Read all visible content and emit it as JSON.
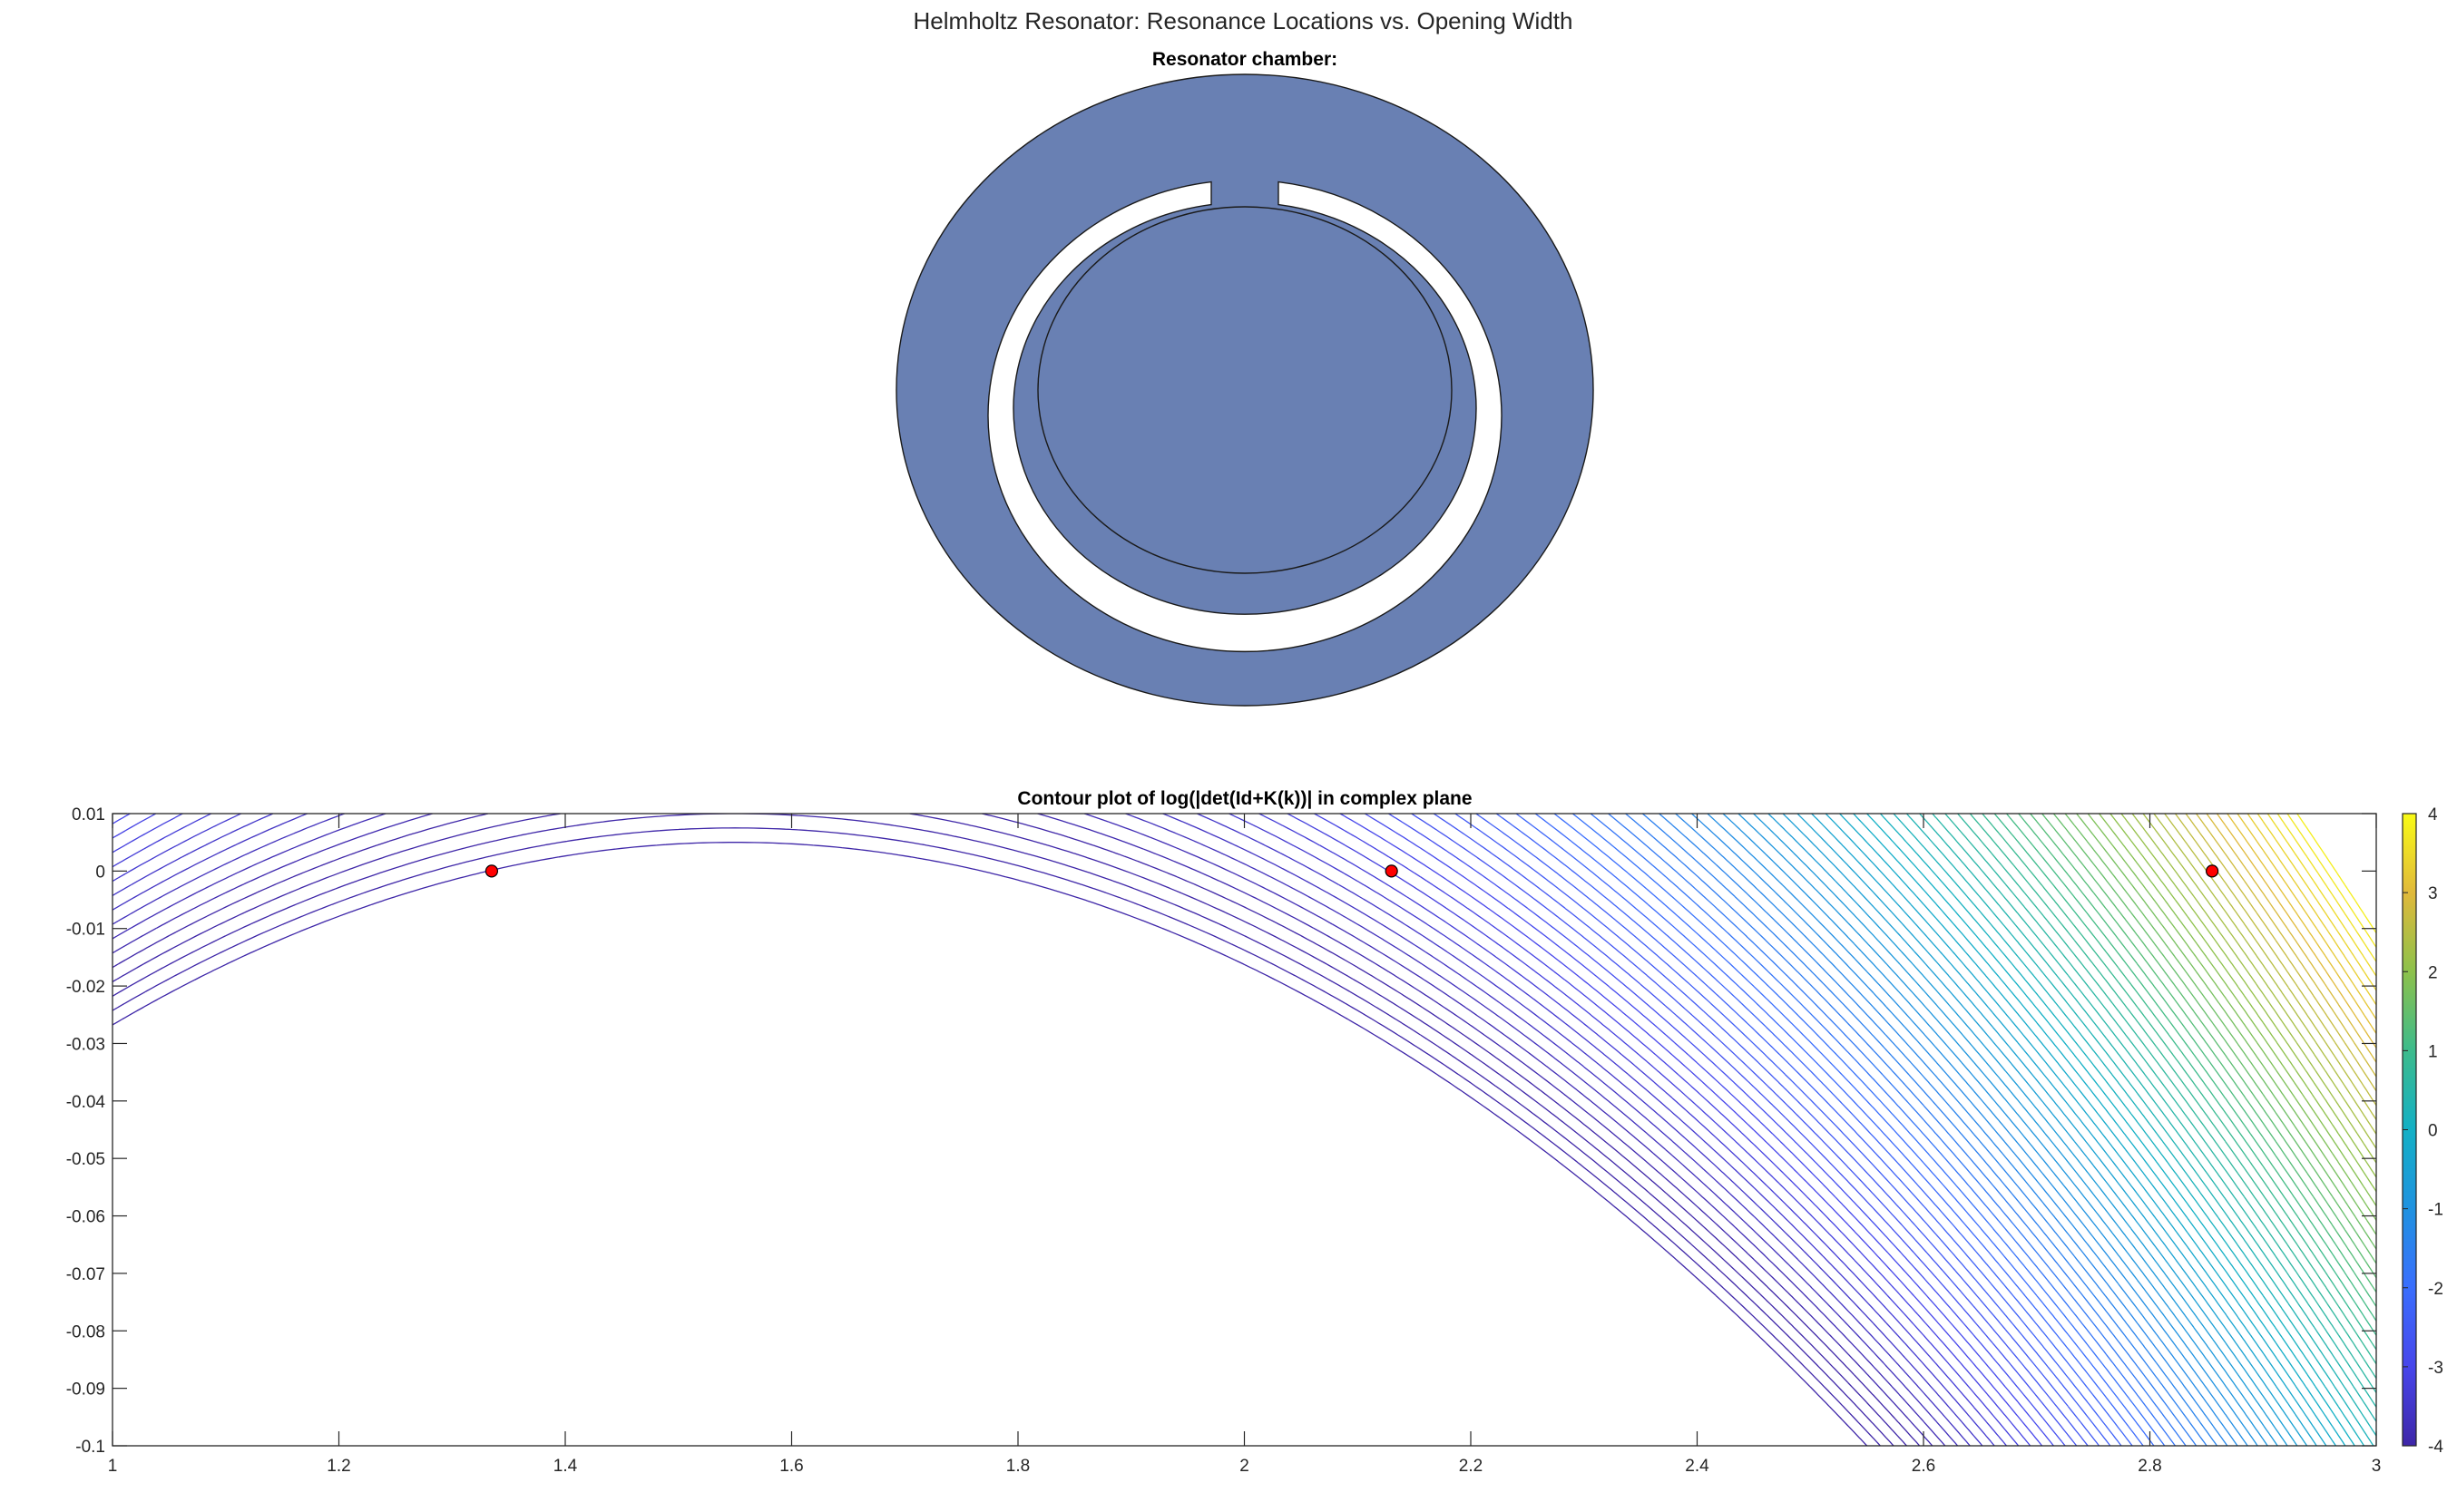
{
  "figure": {
    "suptitle": "Helmholtz Resonator: Resonance Locations vs. Opening Width"
  },
  "chart_data": [
    {
      "type": "geometry",
      "title": "Resonator chamber:",
      "shape": "annular ring with circular cavity and slit opening at top",
      "fill_color": "#6980B3",
      "edge_color": "#1a1a1a"
    },
    {
      "type": "contour",
      "title": "Contour plot of log(|det(Id+K(k))| in complex plane",
      "xlim": [
        1,
        3
      ],
      "ylim": [
        -0.1,
        0.01
      ],
      "xticks": [
        1,
        1.2,
        1.4,
        1.6,
        1.8,
        2,
        2.2,
        2.4,
        2.6,
        2.8,
        3
      ],
      "xtick_labels": [
        "1",
        "1.2",
        "1.4",
        "1.6",
        "1.8",
        "2",
        "2.2",
        "2.4",
        "2.6",
        "2.8",
        "3"
      ],
      "yticks": [
        0.01,
        0,
        -0.01,
        -0.02,
        -0.03,
        -0.04,
        -0.05,
        -0.06,
        -0.07,
        -0.08,
        -0.09,
        -0.1
      ],
      "ytick_labels": [
        "0.01",
        "0",
        "-0.01",
        "-0.02",
        "-0.03",
        "-0.04",
        "-0.05",
        "-0.06",
        "-0.07",
        "-0.08",
        "-0.09",
        "-0.1"
      ],
      "colorbar": {
        "limits": [
          -4,
          4
        ],
        "ticks": [
          4,
          3,
          2,
          1,
          0,
          -1,
          -2,
          -3,
          -4
        ],
        "tick_labels": [
          "4",
          "3",
          "2",
          "1",
          "0",
          "-1",
          "-2",
          "-3",
          "-4"
        ],
        "colormap": "parula"
      },
      "resonance_points": [
        {
          "x": 1.335,
          "y": 0
        },
        {
          "x": 2.13,
          "y": 0
        },
        {
          "x": 2.855,
          "y": 0
        }
      ],
      "marker_color": "#ff0000"
    }
  ]
}
